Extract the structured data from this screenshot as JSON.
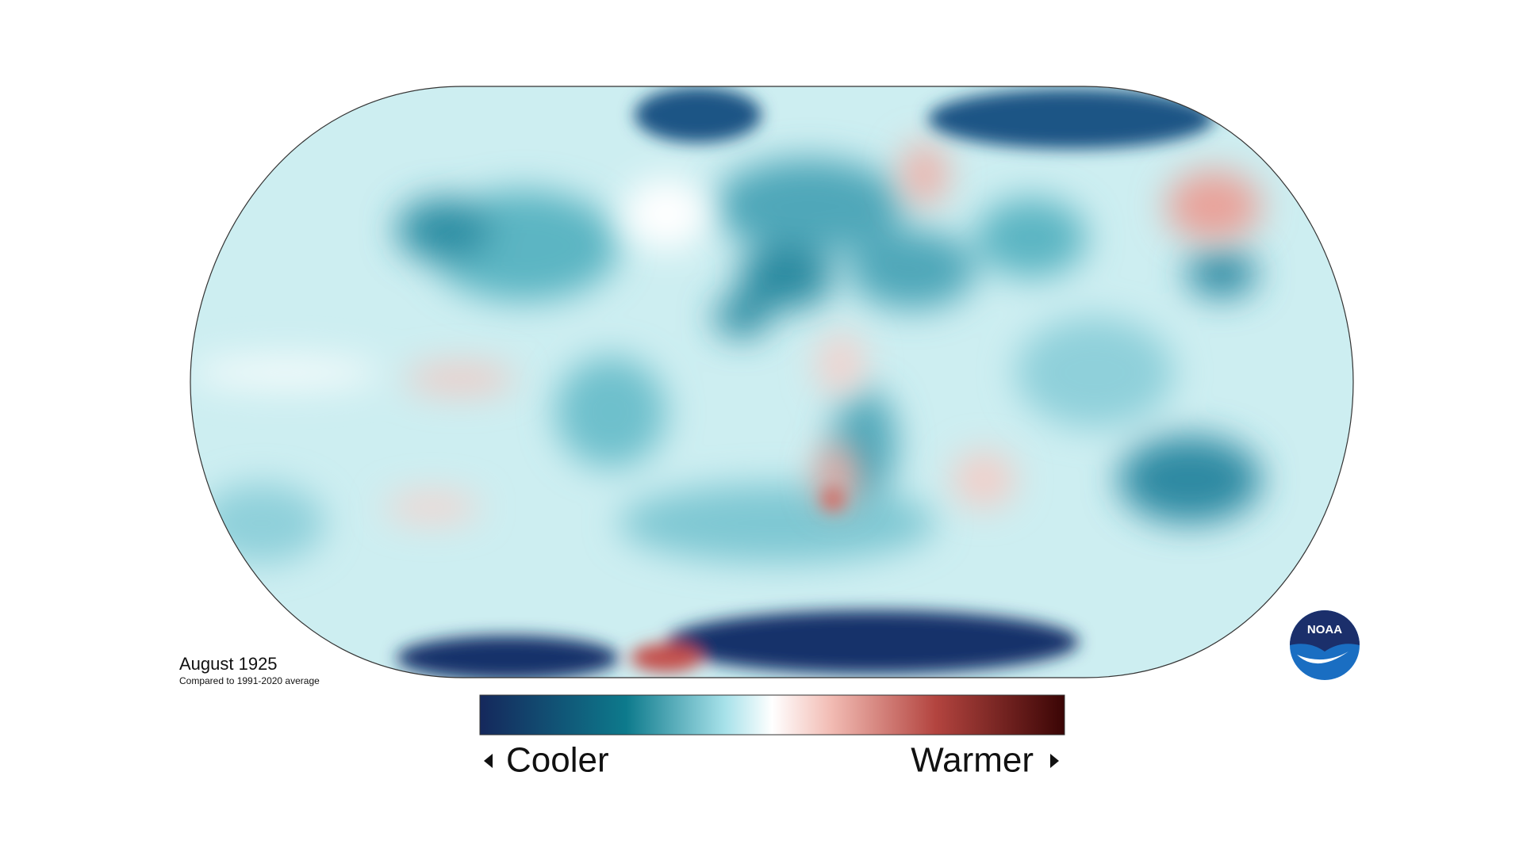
{
  "map": {
    "title": "August 1925",
    "subtitle": "Compared to 1991-2020 average"
  },
  "legend": {
    "low_label": "Cooler",
    "high_label": "Warmer"
  },
  "logo": {
    "text": "NOAA"
  }
}
